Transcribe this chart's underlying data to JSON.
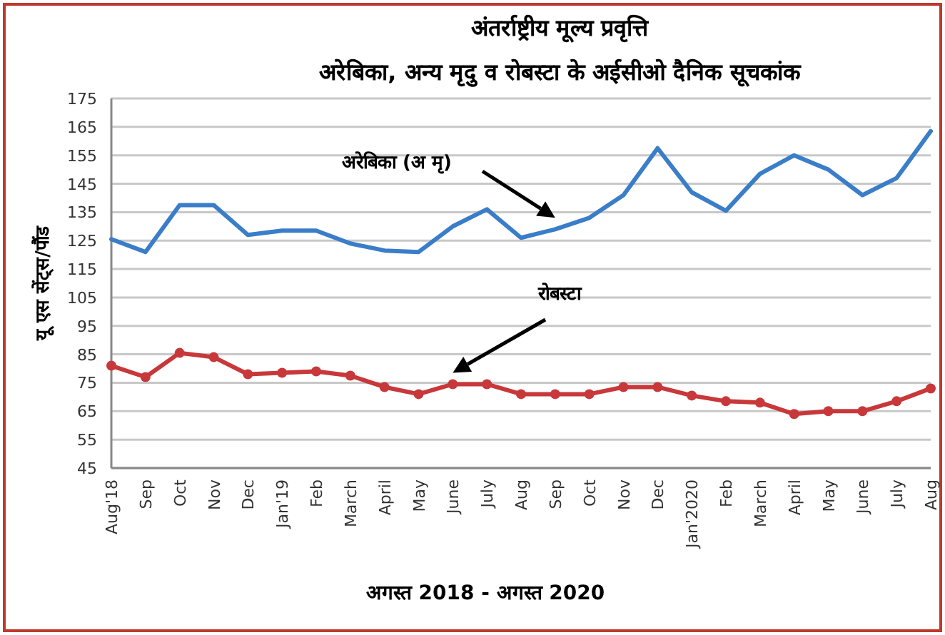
{
  "chart_data": {
    "type": "line",
    "title": "अंतर्राष्ट्रीय मूल्य प्रवृत्ति",
    "subtitle": "अरेबिका, अन्य मृदु व रोबस्टा के अईसीओ दैनिक सूचकांक",
    "xlabel": "अगस्त  2018 - अगस्त 2020",
    "ylabel": "यू एस सेंट्स/पौंड",
    "categories": [
      "Aug'18",
      "Sep",
      "Oct",
      "Nov",
      "Dec",
      "Jan'19",
      "Feb",
      "March",
      "April",
      "May",
      "June",
      "July",
      "Aug",
      "Sep",
      "Oct",
      "Nov",
      "Dec",
      "Jan'2020",
      "Feb",
      "March",
      "April",
      "May",
      "June",
      "July",
      "Aug"
    ],
    "series": [
      {
        "name": "अरेबिका (अ मृ)",
        "color": "#3a7dc9",
        "marker": "none",
        "values": [
          125.5,
          121,
          137.5,
          137.5,
          127,
          128.5,
          128.5,
          124,
          121.5,
          121,
          130,
          136,
          126,
          129,
          133,
          141,
          157.5,
          142,
          135.5,
          148.5,
          155,
          150,
          141,
          147,
          163.5
        ]
      },
      {
        "name": "रोबस्टा",
        "color": "#c8383a",
        "marker": "circle",
        "values": [
          81,
          77,
          85.5,
          84,
          78,
          78.5,
          79,
          77.5,
          73.5,
          71,
          74.5,
          74.5,
          71,
          71,
          71,
          73.5,
          73.5,
          70.5,
          68.5,
          68,
          64,
          65,
          65,
          68.5,
          73
        ]
      }
    ],
    "ylim": [
      45,
      175
    ],
    "yticks": [
      45,
      55,
      65,
      75,
      85,
      95,
      105,
      115,
      125,
      135,
      145,
      155,
      165,
      175
    ],
    "grid": "y",
    "line_style": "solid"
  }
}
